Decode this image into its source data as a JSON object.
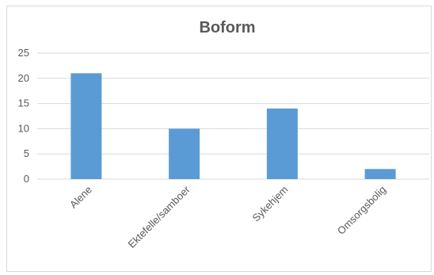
{
  "chart_data": {
    "type": "bar",
    "title": "Boform",
    "categories": [
      "Alene",
      "Ektefelle/samboer",
      "Sykehjem",
      "Omsorgsbolig"
    ],
    "values": [
      21,
      10,
      14,
      2
    ],
    "ylim": [
      0,
      25
    ],
    "yticks": [
      0,
      5,
      10,
      15,
      20,
      25
    ],
    "xlabel": "",
    "ylabel": "",
    "grid": true,
    "legend": "none",
    "bar_color": "#5b9bd5",
    "grid_color": "#d9d9d9"
  }
}
